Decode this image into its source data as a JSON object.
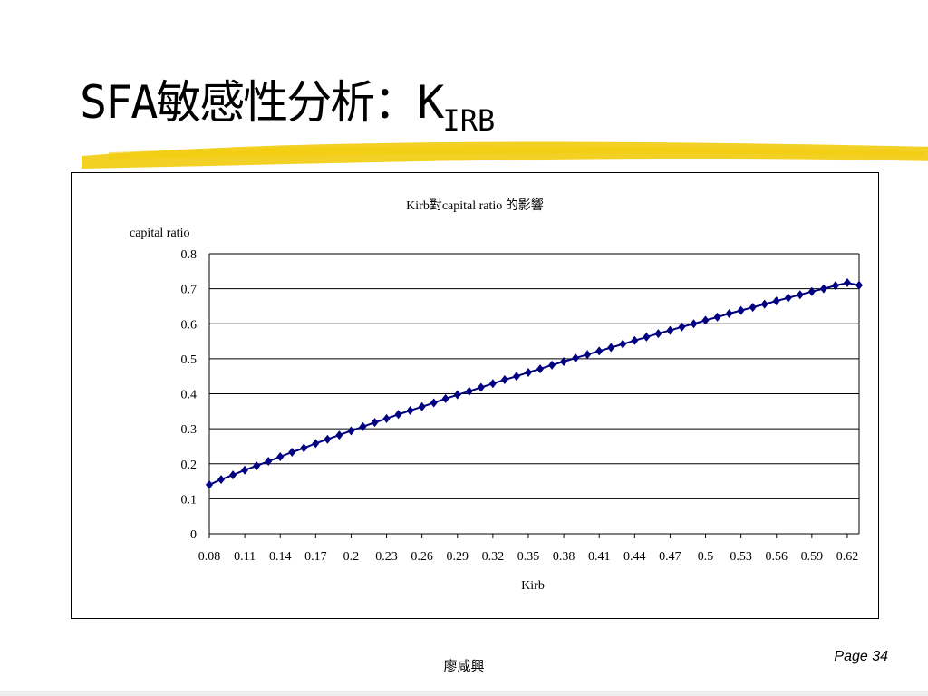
{
  "slide": {
    "title_main": "SFA敏感性分析：K",
    "title_sub": "IRB",
    "footer_author": "廖咸興",
    "page_label": "Page 34"
  },
  "colors": {
    "highlight": "#f2cc0c",
    "series": "#000080",
    "gridline": "#000000"
  },
  "chart_data": {
    "type": "line",
    "title": "Kirb對capital ratio 的影響",
    "xlabel": "Kirb",
    "ylabel": "capital ratio",
    "ylim": [
      0,
      0.8
    ],
    "yticks": [
      "0",
      "0.1",
      "0.2",
      "0.3",
      "0.4",
      "0.5",
      "0.6",
      "0.7",
      "0.8"
    ],
    "x_tick_labels": [
      "0.08",
      "0.11",
      "0.14",
      "0.17",
      "0.2",
      "0.23",
      "0.26",
      "0.29",
      "0.32",
      "0.35",
      "0.38",
      "0.41",
      "0.44",
      "0.47",
      "0.5",
      "0.53",
      "0.56",
      "0.59",
      "0.62"
    ],
    "grid": true,
    "legend": "none",
    "series": [
      {
        "marker": "diamond",
        "x": [
          0.08,
          0.09,
          0.1,
          0.11,
          0.12,
          0.13,
          0.14,
          0.15,
          0.16,
          0.17,
          0.18,
          0.19,
          0.2,
          0.21,
          0.22,
          0.23,
          0.24,
          0.25,
          0.26,
          0.27,
          0.28,
          0.29,
          0.3,
          0.31,
          0.32,
          0.33,
          0.34,
          0.35,
          0.36,
          0.37,
          0.38,
          0.39,
          0.4,
          0.41,
          0.42,
          0.43,
          0.44,
          0.45,
          0.46,
          0.47,
          0.48,
          0.49,
          0.5,
          0.51,
          0.52,
          0.53,
          0.54,
          0.55,
          0.56,
          0.57,
          0.58,
          0.59,
          0.6,
          0.61,
          0.62,
          0.63
        ],
        "values": [
          0.14,
          0.155,
          0.168,
          0.182,
          0.194,
          0.207,
          0.22,
          0.233,
          0.245,
          0.258,
          0.27,
          0.282,
          0.294,
          0.306,
          0.318,
          0.329,
          0.341,
          0.352,
          0.363,
          0.374,
          0.386,
          0.397,
          0.407,
          0.418,
          0.429,
          0.44,
          0.45,
          0.461,
          0.471,
          0.482,
          0.492,
          0.502,
          0.512,
          0.522,
          0.532,
          0.542,
          0.552,
          0.562,
          0.572,
          0.581,
          0.591,
          0.6,
          0.61,
          0.619,
          0.629,
          0.638,
          0.647,
          0.656,
          0.665,
          0.674,
          0.683,
          0.692,
          0.7,
          0.709,
          0.717,
          0.71
        ]
      }
    ]
  }
}
